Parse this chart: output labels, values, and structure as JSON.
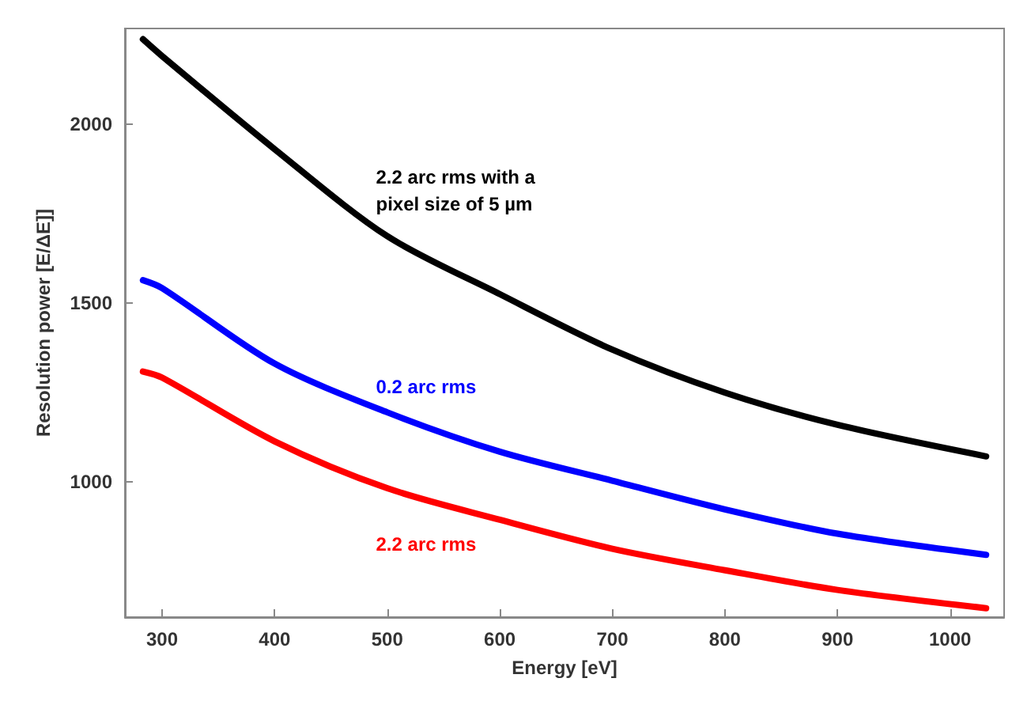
{
  "chart_data": {
    "type": "line",
    "xlabel": "Energy [eV]",
    "ylabel": "Resolution power [E/ΔE]]",
    "xlim": [
      267,
      1048
    ],
    "ylim": [
      623,
      2267
    ],
    "xticks": [
      300,
      400,
      500,
      600,
      700,
      800,
      900,
      1000
    ],
    "yticks": [
      1000,
      1500,
      2000
    ],
    "grid": false,
    "legend": false,
    "marker": "none",
    "line_style": "solid",
    "x": [
      283,
      300,
      400,
      500,
      600,
      700,
      800,
      900,
      1032
    ],
    "series": [
      {
        "name": "2.2 arc rms with a pixel size of 5 µm",
        "color": "#000000",
        "values": [
          2237,
          2190,
          1930,
          1687,
          1525,
          1370,
          1250,
          1160,
          1072
        ]
      },
      {
        "name": "0.2 arc rms",
        "color": "#0000ff",
        "values": [
          1564,
          1542,
          1331,
          1195,
          1085,
          1004,
          924,
          856,
          797
        ]
      },
      {
        "name": "2.2 arc rms",
        "color": "#ff0000",
        "values": [
          1309,
          1292,
          1114,
          983,
          895,
          814,
          754,
          699,
          648
        ]
      }
    ]
  }
}
